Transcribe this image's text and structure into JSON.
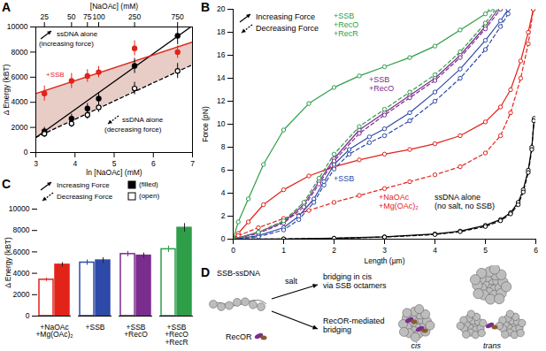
{
  "chart_data": [
    {
      "panel": "A",
      "type": "scatter",
      "xlabel": "ln [NaOAc] (mM)",
      "x2label": "[NaOAc] (mM)",
      "ylabel": "Δ Energy (kBT)",
      "xlim": [
        3,
        7
      ],
      "xticks": [
        3,
        4,
        5,
        6,
        7
      ],
      "x2ticks": [
        {
          "value": 3.2189,
          "label": "25"
        },
        {
          "value": 3.912,
          "label": "50"
        },
        {
          "value": 4.3175,
          "label": "75"
        },
        {
          "value": 4.6052,
          "label": "100"
        },
        {
          "value": 5.5215,
          "label": "250"
        },
        {
          "value": 6.6201,
          "label": "750"
        }
      ],
      "ylim": [
        0,
        10000
      ],
      "yticks": [
        0,
        2000,
        4000,
        6000,
        8000,
        10000
      ],
      "series": [
        {
          "name": "ssDNA alone\n(increasing force)",
          "color": "#000000",
          "marker": "filled circle",
          "line_style": "solid",
          "x": [
            3.2189,
            3.912,
            4.3175,
            4.6052,
            5.5215,
            6.6201
          ],
          "values": [
            1700,
            2700,
            3500,
            4300,
            6900,
            9300
          ],
          "errors": [
            300,
            350,
            400,
            450,
            600,
            700
          ],
          "fit": {
            "x": [
              3,
              7
            ],
            "values": [
              1200,
              10100
            ]
          }
        },
        {
          "name": "ssDNA alone\n(decreasing force)",
          "color": "#000000",
          "marker": "open circle",
          "line_style": "dashed",
          "x": [
            3.2189,
            3.912,
            4.3175,
            4.6052,
            5.5215,
            6.6201
          ],
          "values": [
            1500,
            2300,
            3000,
            3600,
            5100,
            6500
          ],
          "errors": [
            300,
            300,
            350,
            400,
            500,
            600
          ],
          "fit": {
            "x": [
              3,
              7
            ],
            "values": [
              1200,
              7000
            ]
          }
        },
        {
          "name": "+SSB",
          "color": "#e2231a",
          "marker": "filled circle",
          "line_style": "solid",
          "x": [
            3.2189,
            3.912,
            4.3175,
            4.6052,
            5.5215,
            6.6201
          ],
          "values": [
            4700,
            5700,
            6100,
            6400,
            8300,
            8000
          ],
          "errors": [
            600,
            600,
            500,
            450,
            600,
            500
          ],
          "fit": {
            "x": [
              3,
              7
            ],
            "values": [
              4700,
              8800
            ]
          }
        }
      ]
    },
    {
      "panel": "B",
      "type": "line",
      "xlabel": "Length (µm)",
      "ylabel": "Force (pN)",
      "xlim": [
        0,
        6
      ],
      "xticks": [
        0,
        1,
        2,
        3,
        4,
        5,
        6
      ],
      "ylim": [
        0,
        20
      ],
      "yticks": [
        0,
        2,
        4,
        6,
        8,
        10,
        12,
        14,
        16,
        18,
        20
      ],
      "legend": "top-left",
      "legend_labels": [
        {
          "label": "Increasing Force",
          "line_style": "solid"
        },
        {
          "label": "Decreasing Force",
          "line_style": "dashed"
        }
      ],
      "series": [
        {
          "name": "ssDNA alone\n(no salt, no SSB)",
          "color": "#000000",
          "marker": "open circle",
          "increasing": {
            "line_style": "solid",
            "x": [
              0,
              1,
              2,
              3,
              4,
              4.5,
              5,
              5.3,
              5.5,
              5.65,
              5.75,
              5.85,
              5.92,
              5.97
            ],
            "values": [
              0,
              0.02,
              0.08,
              0.2,
              0.45,
              0.7,
              1.2,
              1.7,
              2.3,
              3.2,
              4.3,
              6,
              8,
              10.5
            ]
          },
          "decreasing": {
            "line_style": "dashed",
            "x": [
              0,
              1,
              2,
              3,
              4,
              4.5,
              5,
              5.3,
              5.5,
              5.65,
              5.75,
              5.85,
              5.92,
              5.96
            ],
            "values": [
              0,
              0.02,
              0.07,
              0.18,
              0.4,
              0.65,
              1.1,
              1.6,
              2.2,
              3,
              4.1,
              5.8,
              7.8,
              10.3
            ]
          }
        },
        {
          "name": "+NaOAc\n+Mg(OAc)₂",
          "color": "#e2231a",
          "marker": "open circle",
          "increasing": {
            "line_style": "solid",
            "x": [
              0,
              0.1,
              0.3,
              0.6,
              1,
              1.5,
              2,
              2.5,
              3,
              3.5,
              4,
              4.5,
              5,
              5.3,
              5.5,
              5.7,
              5.85,
              5.95
            ],
            "values": [
              0,
              0.5,
              1.5,
              3,
              4.3,
              5.5,
              6.3,
              6.9,
              7.4,
              7.8,
              8.3,
              9,
              10.2,
              11.5,
              13,
              15.5,
              18,
              20
            ]
          },
          "decreasing": {
            "line_style": "dashed",
            "x": [
              0,
              0.1,
              0.5,
              1,
              1.5,
              2,
              2.5,
              3,
              3.5,
              4,
              4.5,
              5,
              5.3,
              5.5,
              5.7,
              5.85,
              5.95
            ],
            "values": [
              0,
              0.3,
              1,
              1.8,
              2.5,
              3.2,
              3.8,
              4.4,
              5,
              5.6,
              6.3,
              7.5,
              9,
              11,
              14,
              17,
              20
            ]
          }
        },
        {
          "name": "+SSB",
          "color": "#2e4aa8",
          "marker": "open circle",
          "increasing": {
            "line_style": "solid",
            "x": [
              0,
              0.5,
              1,
              1.3,
              1.6,
              1.8,
              2,
              2.3,
              2.7,
              3,
              3.5,
              4,
              4.5,
              5,
              5.3,
              5.45
            ],
            "values": [
              0,
              0.3,
              1,
              2,
              3.5,
              5,
              6.5,
              7.8,
              8.9,
              9.6,
              11,
              12.8,
              14.8,
              17.3,
              19,
              20
            ]
          },
          "decreasing": {
            "line_style": "dashed",
            "x": [
              0,
              0.5,
              1,
              1.3,
              1.6,
              1.8,
              2,
              2.3,
              2.7,
              3,
              3.5,
              4,
              4.5,
              5,
              5.3,
              5.45
            ],
            "values": [
              0,
              0.2,
              0.8,
              1.7,
              3.2,
              4.7,
              6.1,
              7.4,
              8.4,
              9,
              10.3,
              12,
              14,
              16.5,
              18.5,
              19.6
            ]
          }
        },
        {
          "name": "+SSB\n+RecO",
          "color": "#7b2d8e",
          "marker": "open circle",
          "increasing": {
            "line_style": "solid",
            "x": [
              0,
              0.5,
              1,
              1.4,
              1.7,
              2,
              2.5,
              3,
              3.5,
              4,
              4.5,
              5,
              5.25
            ],
            "values": [
              0,
              0.6,
              1.5,
              3,
              5,
              7,
              9.5,
              11,
              12.5,
              14,
              16,
              18.5,
              20
            ]
          },
          "decreasing": {
            "line_style": "dashed",
            "x": [
              0,
              0.5,
              1,
              1.4,
              1.7,
              2,
              2.5,
              3,
              3.5,
              4,
              4.5,
              5,
              5.3
            ],
            "values": [
              0,
              0.5,
              1.4,
              2.8,
              4.8,
              6.8,
              9.2,
              10.8,
              12.3,
              13.8,
              15.8,
              18.3,
              20
            ]
          }
        },
        {
          "name": "+SSB\n+RecO\n+RecR",
          "color": "#2e9e48",
          "marker": "open circle",
          "increasing": {
            "line_style": "solid",
            "x": [
              0,
              0.1,
              0.3,
              0.6,
              1,
              1.5,
              2,
              2.5,
              3,
              3.5,
              4,
              4.5,
              5,
              5.1
            ],
            "values": [
              0,
              1.5,
              3.5,
              6.5,
              9.5,
              11.8,
              13.2,
              14.2,
              15,
              15.8,
              16.8,
              18.2,
              19.6,
              20
            ]
          },
          "decreasing": {
            "line_style": "dashed",
            "x": [
              0,
              0.5,
              1,
              1.4,
              1.7,
              2,
              2.5,
              3,
              3.5,
              4,
              4.5,
              5,
              5.2
            ],
            "values": [
              0,
              0.6,
              1.6,
              3.2,
              5.3,
              7.4,
              9.8,
              11.3,
              12.8,
              14.3,
              16.3,
              18.8,
              20
            ]
          }
        }
      ]
    },
    {
      "panel": "C",
      "type": "bar",
      "ylabel": "Δ Energy (kBT)",
      "categories": [
        "+NaOAc\n+Mg(OAc)₂",
        "+SSB",
        "+SSB\n+RecO",
        "+SSB\n+RecO\n+RecR"
      ],
      "colors": [
        "#e2231a",
        "#2e4aa8",
        "#7b2d8e",
        "#2e9e48"
      ],
      "ylim": [
        0,
        10000
      ],
      "yticks": [
        0,
        2000,
        4000,
        6000,
        8000,
        10000
      ],
      "legend": "top-left",
      "series": [
        {
          "name": "Increasing Force",
          "line_style": "solid",
          "marker": "filled",
          "style_label": "(filled)",
          "values": [
            4800,
            5200,
            5650,
            8250
          ],
          "errors": [
            200,
            250,
            250,
            400
          ]
        },
        {
          "name": "Decreasing Force",
          "line_style": "dashed",
          "marker": "open",
          "style_label": "(open)",
          "values": [
            3400,
            5000,
            5800,
            6250
          ],
          "errors": [
            150,
            250,
            250,
            300
          ]
        }
      ]
    }
  ],
  "diagram": {
    "panel": "D",
    "start": "SSB-ssDNA",
    "paths": [
      {
        "arrow_label": "salt",
        "result": "bridging in cis\nvia SSB octamers"
      },
      {
        "arrow_label": "RecOR",
        "result": "RecOR-mediated\nbridging",
        "modes": [
          "cis",
          "trans"
        ]
      }
    ]
  }
}
